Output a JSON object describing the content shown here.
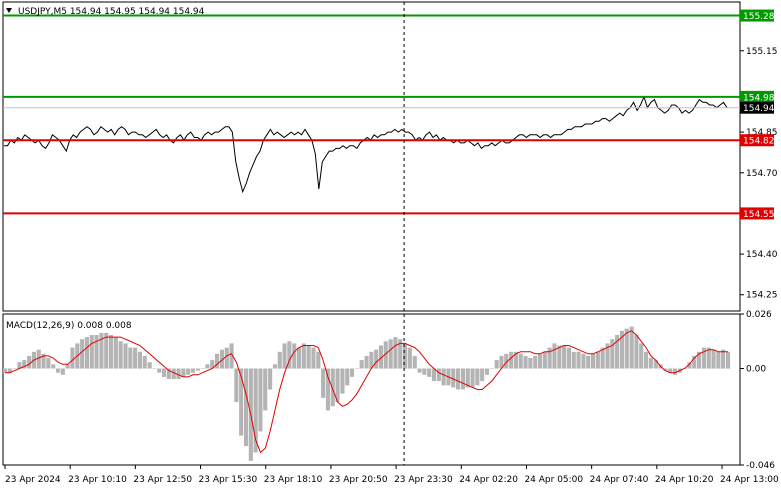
{
  "header": {
    "symbol_line": "USDJPY,M5  154.94 154.95 154.94 154.94",
    "macd_label": "MACD(12,26,9) 0.008 0.008"
  },
  "colors": {
    "price_line": "#000000",
    "resistance_line": "#009900",
    "support_line": "#e00000",
    "current_price_line": "#c0c0c0",
    "macd_histogram": "#b4b4b4",
    "macd_signal": "#e00000",
    "grid": "#d8d8d8",
    "crosshair": "#000000"
  },
  "chart_data": [
    {
      "type": "line",
      "panel": "price",
      "ylim": [
        154.19,
        155.33
      ],
      "y_ticks": [
        "155.15",
        "154.85",
        "154.70",
        "154.40",
        "154.25"
      ],
      "series": [
        {
          "values": [
            154.8,
            154.8,
            154.82,
            154.81,
            154.83,
            154.82,
            154.84,
            154.83,
            154.82,
            154.81,
            154.82,
            154.8,
            154.79,
            154.81,
            154.84,
            154.83,
            154.82,
            154.8,
            154.78,
            154.82,
            154.84,
            154.83,
            154.85,
            154.86,
            154.87,
            154.86,
            154.84,
            154.85,
            154.87,
            154.86,
            154.85,
            154.86,
            154.84,
            154.86,
            154.87,
            154.86,
            154.84,
            154.85,
            154.85,
            154.84,
            154.84,
            154.83,
            154.84,
            154.85,
            154.86,
            154.84,
            154.83,
            154.84,
            154.82,
            154.81,
            154.83,
            154.84,
            154.82,
            154.84,
            154.85,
            154.83,
            154.83,
            154.82,
            154.84,
            154.85,
            154.84,
            154.85,
            154.85,
            154.86,
            154.87,
            154.87,
            154.85,
            154.74,
            154.68,
            154.63,
            154.66,
            154.7,
            154.73,
            154.76,
            154.78,
            154.82,
            154.84,
            154.86,
            154.84,
            154.85,
            154.84,
            154.83,
            154.84,
            154.85,
            154.84,
            154.85,
            154.84,
            154.86,
            154.84,
            154.82,
            154.77,
            154.64,
            154.74,
            154.76,
            154.78,
            154.78,
            154.79,
            154.79,
            154.8,
            154.79,
            154.8,
            154.8,
            154.79,
            154.81,
            154.82,
            154.83,
            154.82,
            154.84,
            154.83,
            154.84,
            154.84,
            154.85,
            154.85,
            154.86,
            154.85,
            154.86,
            154.85,
            154.85,
            154.84,
            154.82,
            154.83,
            154.82,
            154.84,
            154.85,
            154.83,
            154.84,
            154.82,
            154.83,
            154.82,
            154.82,
            154.81,
            154.82,
            154.81,
            154.81,
            154.82,
            154.81,
            154.8,
            154.81,
            154.79,
            154.8,
            154.8,
            154.81,
            154.8,
            154.81,
            154.82,
            154.81,
            154.81,
            154.82,
            154.83,
            154.84,
            154.84,
            154.83,
            154.84,
            154.84,
            154.84,
            154.83,
            154.84,
            154.84,
            154.83,
            154.84,
            154.84,
            154.84,
            154.85,
            154.86,
            154.86,
            154.87,
            154.87,
            154.87,
            154.88,
            154.88,
            154.88,
            154.89,
            154.89,
            154.9,
            154.9,
            154.89,
            154.9,
            154.91,
            154.92,
            154.91,
            154.93,
            154.94,
            154.96,
            154.93,
            154.95,
            154.98,
            154.94,
            154.96,
            154.97,
            154.94,
            154.93,
            154.92,
            154.93,
            154.95,
            154.95,
            154.94,
            154.92,
            154.93,
            154.92,
            154.93,
            154.95,
            154.97,
            154.96,
            154.96,
            154.95,
            154.95,
            154.94,
            154.95,
            154.96,
            154.94
          ]
        }
      ],
      "levels": [
        {
          "value": 155.28,
          "label": "155.28",
          "role": "resistance"
        },
        {
          "value": 154.98,
          "label": "154.98",
          "role": "resistance"
        },
        {
          "value": 154.94,
          "label": "154.94",
          "role": "current"
        },
        {
          "value": 154.82,
          "label": "154.82",
          "role": "support"
        },
        {
          "value": 154.55,
          "label": "154.55",
          "role": "support"
        }
      ],
      "x_ticks": [
        "23 Apr 2024",
        "23 Apr 10:10",
        "23 Apr 12:50",
        "23 Apr 15:30",
        "23 Apr 18:10",
        "23 Apr 20:50",
        "23 Apr 23:30",
        "24 Apr 02:20",
        "24 Apr 05:00",
        "24 Apr 07:40",
        "24 Apr 10:20",
        "24 Apr 13:00"
      ],
      "grid": true
    },
    {
      "type": "bar",
      "panel": "macd",
      "ylim": [
        -0.046,
        0.026
      ],
      "y_ticks": [
        "0.026",
        "0.00",
        "-0.046"
      ],
      "histogram": [
        -0.002,
        -0.002,
        0.0,
        0.003,
        0.004,
        0.006,
        0.008,
        0.009,
        0.007,
        0.005,
        0.002,
        -0.002,
        -0.003,
        0.002,
        0.01,
        0.012,
        0.014,
        0.015,
        0.016,
        0.016,
        0.017,
        0.017,
        0.016,
        0.015,
        0.013,
        0.012,
        0.01,
        0.01,
        0.008,
        0.006,
        0.003,
        0.0,
        -0.002,
        -0.004,
        -0.005,
        -0.005,
        -0.005,
        -0.004,
        -0.003,
        -0.002,
        -0.001,
        0.0,
        0.002,
        0.004,
        0.007,
        0.009,
        0.01,
        0.012,
        -0.016,
        -0.032,
        -0.037,
        -0.044,
        -0.04,
        -0.03,
        -0.02,
        -0.01,
        0.002,
        0.008,
        0.012,
        0.013,
        0.012,
        0.01,
        0.012,
        0.011,
        0.01,
        0.008,
        -0.014,
        -0.02,
        -0.018,
        -0.016,
        -0.012,
        -0.008,
        -0.004,
        0.0,
        0.004,
        0.006,
        0.008,
        0.009,
        0.011,
        0.013,
        0.014,
        0.015,
        0.014,
        0.012,
        0.01,
        0.006,
        -0.002,
        -0.003,
        -0.004,
        -0.006,
        -0.006,
        -0.008,
        -0.008,
        -0.009,
        -0.01,
        -0.01,
        -0.009,
        -0.009,
        -0.008,
        -0.006,
        -0.003,
        0.0,
        0.004,
        0.006,
        0.007,
        0.008,
        0.008,
        0.007,
        0.006,
        0.005,
        0.006,
        0.007,
        0.008,
        0.01,
        0.012,
        0.011,
        0.011,
        0.01,
        0.008,
        0.008,
        0.007,
        0.006,
        0.007,
        0.008,
        0.01,
        0.012,
        0.014,
        0.016,
        0.018,
        0.019,
        0.02,
        0.016,
        0.012,
        0.008,
        0.005,
        0.004,
        0.002,
        -0.001,
        -0.002,
        -0.003,
        -0.002,
        0.0,
        0.003,
        0.006,
        0.008,
        0.01,
        0.01,
        0.009,
        0.008,
        0.009,
        0.008
      ],
      "signal": [
        -0.002,
        -0.002,
        -0.001,
        0.0,
        0.001,
        0.002,
        0.004,
        0.005,
        0.006,
        0.006,
        0.005,
        0.003,
        0.002,
        0.002,
        0.004,
        0.006,
        0.008,
        0.01,
        0.012,
        0.013,
        0.014,
        0.015,
        0.015,
        0.015,
        0.015,
        0.014,
        0.013,
        0.012,
        0.011,
        0.009,
        0.007,
        0.005,
        0.003,
        0.001,
        -0.001,
        -0.002,
        -0.003,
        -0.004,
        -0.004,
        -0.003,
        -0.003,
        -0.002,
        -0.001,
        0.0,
        0.002,
        0.004,
        0.006,
        0.007,
        0.003,
        -0.004,
        -0.012,
        -0.022,
        -0.034,
        -0.04,
        -0.038,
        -0.03,
        -0.02,
        -0.01,
        -0.002,
        0.004,
        0.008,
        0.01,
        0.011,
        0.011,
        0.011,
        0.01,
        0.004,
        -0.004,
        -0.01,
        -0.016,
        -0.018,
        -0.017,
        -0.015,
        -0.012,
        -0.008,
        -0.004,
        0.0,
        0.003,
        0.005,
        0.007,
        0.009,
        0.011,
        0.012,
        0.012,
        0.011,
        0.01,
        0.008,
        0.005,
        0.002,
        0.0,
        -0.002,
        -0.003,
        -0.004,
        -0.005,
        -0.006,
        -0.007,
        -0.008,
        -0.009,
        -0.01,
        -0.01,
        -0.008,
        -0.006,
        -0.003,
        0.0,
        0.003,
        0.005,
        0.007,
        0.008,
        0.008,
        0.008,
        0.007,
        0.007,
        0.008,
        0.008,
        0.009,
        0.01,
        0.011,
        0.011,
        0.01,
        0.009,
        0.008,
        0.007,
        0.007,
        0.008,
        0.009,
        0.01,
        0.011,
        0.013,
        0.015,
        0.017,
        0.018,
        0.016,
        0.013,
        0.01,
        0.006,
        0.004,
        0.001,
        -0.001,
        -0.002,
        -0.002,
        -0.001,
        0.0,
        0.002,
        0.005,
        0.007,
        0.008,
        0.009,
        0.009,
        0.008,
        0.008,
        0.008
      ],
      "grid": true
    }
  ]
}
